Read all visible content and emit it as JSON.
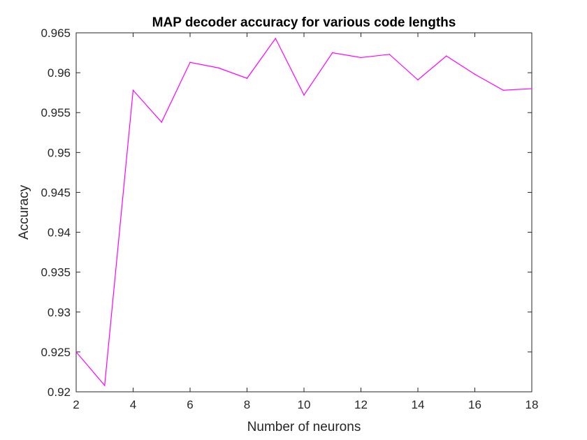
{
  "chart_data": {
    "type": "line",
    "title": "MAP decoder accuracy for various code lengths",
    "xlabel": "Number of neurons",
    "ylabel": "Accuracy",
    "xlim": [
      2,
      18
    ],
    "ylim": [
      0.92,
      0.965
    ],
    "xticks": [
      2,
      4,
      6,
      8,
      10,
      12,
      14,
      16,
      18
    ],
    "yticks": [
      0.92,
      0.925,
      0.93,
      0.935,
      0.94,
      0.945,
      0.95,
      0.955,
      0.96,
      0.965
    ],
    "xtick_labels": [
      "2",
      "4",
      "6",
      "8",
      "10",
      "12",
      "14",
      "16",
      "18"
    ],
    "ytick_labels": [
      "0.92",
      "0.925",
      "0.93",
      "0.935",
      "0.94",
      "0.945",
      "0.95",
      "0.955",
      "0.96",
      "0.965"
    ],
    "grid": false,
    "series": [
      {
        "color": "#ff00ff",
        "x": [
          2,
          3,
          4,
          5,
          6,
          7,
          8,
          9,
          10,
          11,
          12,
          13,
          14,
          15,
          16,
          17,
          18
        ],
        "values": [
          0.925,
          0.9208,
          0.9578,
          0.9538,
          0.9613,
          0.9606,
          0.9593,
          0.9643,
          0.9572,
          0.9625,
          0.9619,
          0.9623,
          0.9591,
          0.9621,
          0.9598,
          0.9578,
          0.958
        ]
      }
    ]
  }
}
